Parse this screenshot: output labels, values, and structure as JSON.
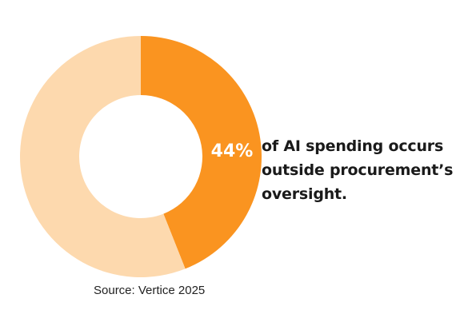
{
  "chart_data": {
    "type": "pie",
    "title": "",
    "slices": [
      {
        "value": 44,
        "label": "44%",
        "color": "#FA9420"
      },
      {
        "value": 56,
        "label": "",
        "color": "#FDD9AE"
      }
    ]
  },
  "caption": "of AI spending occurs outside procurement’s oversight.",
  "source": "Source: Vertice 2025",
  "colors": {
    "accent": "#FA9420",
    "accent_light": "#FDD9AE",
    "label_text": "#FFFFFF",
    "caption_text": "#1A1A1A"
  }
}
